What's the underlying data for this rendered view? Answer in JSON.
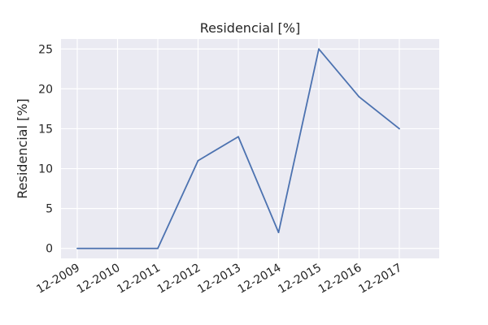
{
  "chart_data": {
    "type": "line",
    "title": "Residencial [%]",
    "xlabel": "",
    "ylabel": "Residencial [%]",
    "categories": [
      "12-2009",
      "12-2010",
      "12-2011",
      "12-2012",
      "12-2013",
      "12-2014",
      "12-2015",
      "12-2016",
      "12-2017"
    ],
    "series": [
      {
        "values": [
          0,
          0,
          0,
          11,
          14,
          2,
          25,
          19,
          15
        ]
      }
    ],
    "yticks": [
      0,
      5,
      10,
      15,
      20,
      25
    ],
    "ylim": [
      -1.25,
      26.25
    ],
    "grid": true,
    "legend": "none",
    "colors": {
      "background": "#eaeaf2",
      "grid": "#ffffff",
      "line": "#4c72b0",
      "text": "#262626"
    }
  }
}
